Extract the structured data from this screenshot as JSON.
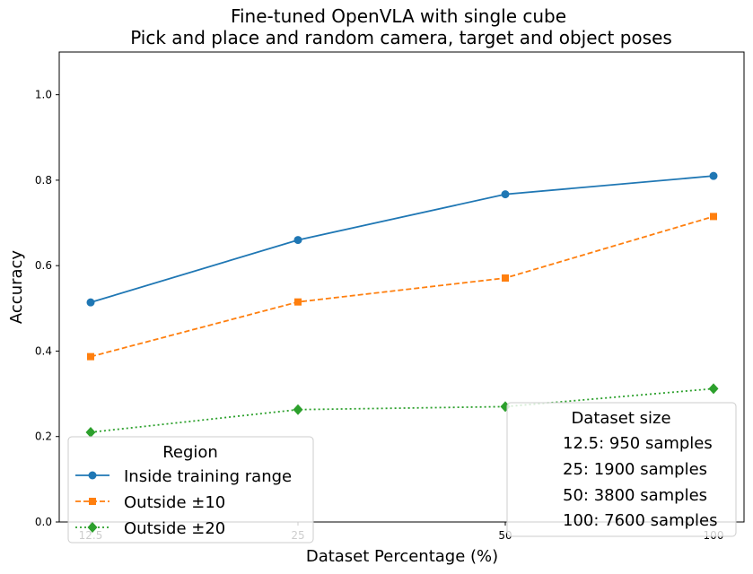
{
  "chart_data": {
    "type": "line",
    "title": "Fine-tuned OpenVLA with single cube",
    "subtitle": "Pick and place and random camera, target and object poses",
    "xlabel": "Dataset Percentage (%)",
    "ylabel": "Accuracy",
    "x": [
      "12.5",
      "25",
      "50",
      "100"
    ],
    "ylim": [
      0,
      1.1
    ],
    "yticks": [
      "0.0",
      "0.2",
      "0.4",
      "0.6",
      "0.8",
      "1.0"
    ],
    "grid": false,
    "series": [
      {
        "name": "Inside training range",
        "values": [
          0.514,
          0.66,
          0.767,
          0.81
        ],
        "color": "#1f77b4",
        "marker": "circle",
        "linestyle": "solid"
      },
      {
        "name": "Outside ±10",
        "values": [
          0.387,
          0.515,
          0.571,
          0.715
        ],
        "color": "#ff7f0e",
        "marker": "square",
        "linestyle": "dashed"
      },
      {
        "name": "Outside ±20",
        "values": [
          0.21,
          0.263,
          0.27,
          0.312
        ],
        "color": "#2ca02c",
        "marker": "diamond",
        "linestyle": "dotted"
      }
    ],
    "legend": {
      "title": "Region",
      "placement": "lower-left"
    },
    "info_box": {
      "title": "Dataset size",
      "lines": [
        "12.5: 950 samples",
        "25: 1900 samples",
        "50: 3800 samples",
        "100: 7600 samples"
      ],
      "placement": "lower-right"
    }
  }
}
